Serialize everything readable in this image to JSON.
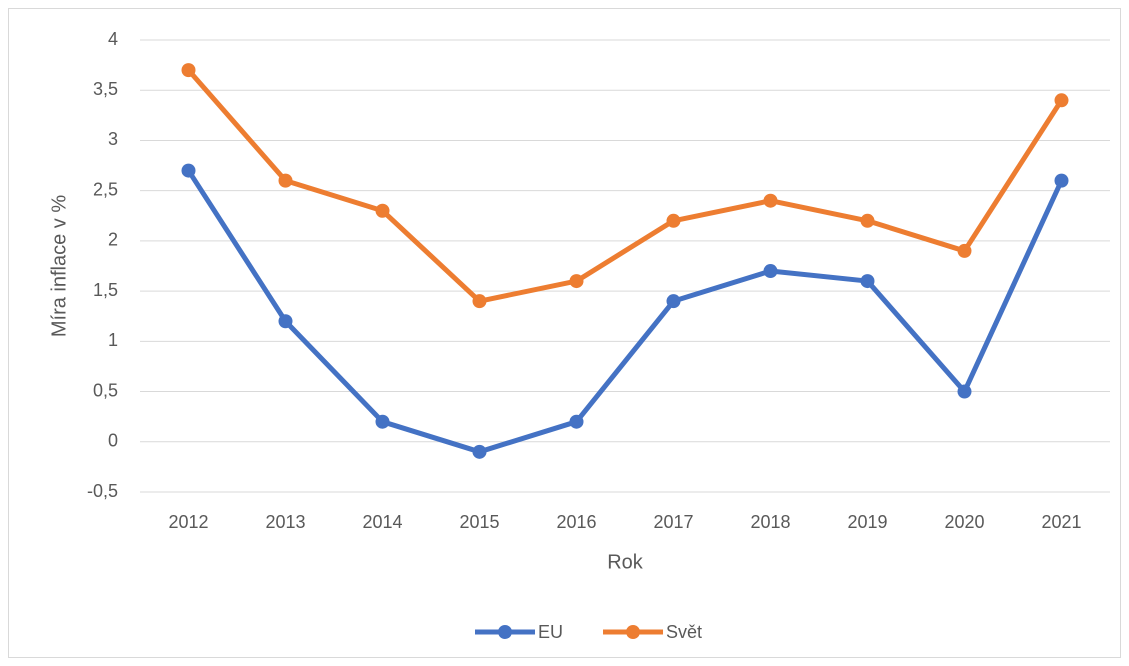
{
  "chart_data": {
    "type": "line",
    "x_label": "Rok",
    "y_label": "Míra inflace v %",
    "categories": [
      "2012",
      "2013",
      "2014",
      "2015",
      "2016",
      "2017",
      "2018",
      "2019",
      "2020",
      "2021"
    ],
    "series": [
      {
        "name": "EU",
        "color": "#4472c4",
        "values": [
          2.7,
          1.2,
          0.2,
          -0.1,
          0.2,
          1.4,
          1.7,
          1.6,
          0.5,
          2.6
        ]
      },
      {
        "name": "Svět",
        "color": "#ed7d31",
        "values": [
          3.7,
          2.6,
          2.3,
          1.4,
          1.6,
          2.2,
          2.4,
          2.2,
          1.9,
          3.4
        ]
      }
    ],
    "ylim": [
      -0.5,
      4
    ],
    "yticks": [
      {
        "value": -0.5,
        "label": "-0,5"
      },
      0,
      {
        "value": 0.5,
        "label": "0,5"
      },
      1,
      {
        "value": 1.5,
        "label": "1,5"
      },
      2,
      {
        "value": 2.5,
        "label": "2,5"
      },
      3,
      {
        "value": 3.5,
        "label": "3,5"
      },
      4
    ],
    "grid": true,
    "legend": "bottom"
  }
}
